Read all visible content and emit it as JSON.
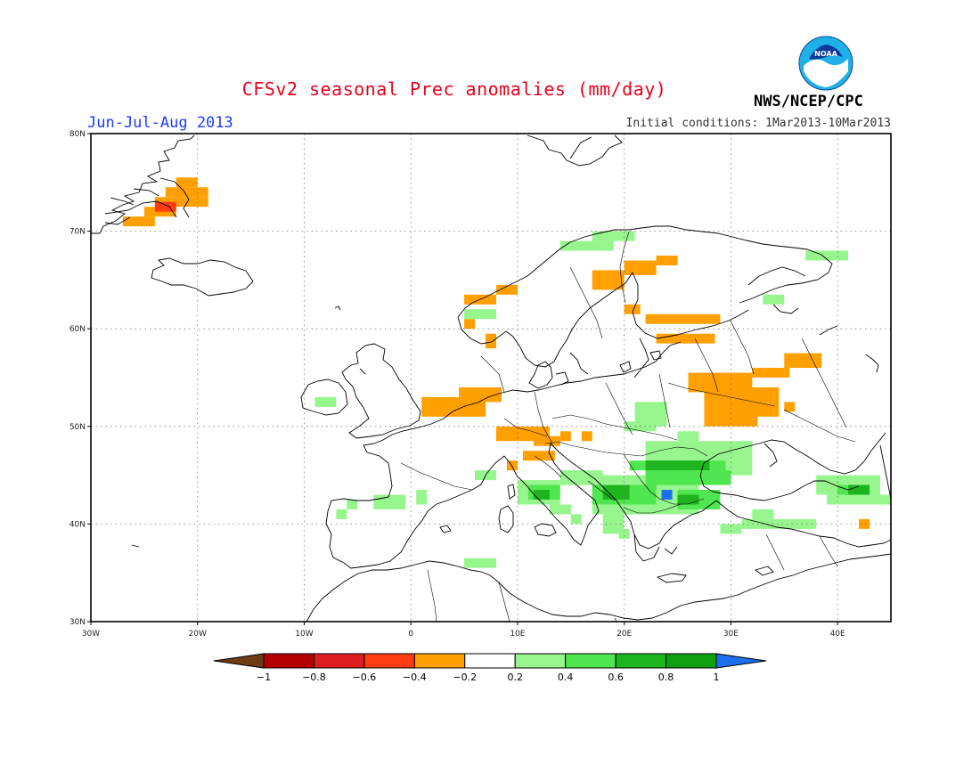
{
  "header": {
    "title": "CFSv2 seasonal Prec anomalies (mm/day)",
    "season": "Jun-Jul-Aug 2013",
    "initial_conditions": "Initial conditions: 1Mar2013-10Mar2013",
    "agency": "NWS/NCEP/CPC",
    "logo_text": "NOAA"
  },
  "map": {
    "lon_range": [
      -30,
      45
    ],
    "lat_range": [
      30,
      80
    ],
    "lon_ticks": [
      {
        "v": -30,
        "label": "30W"
      },
      {
        "v": -20,
        "label": "20W"
      },
      {
        "v": -10,
        "label": "10W"
      },
      {
        "v": 0,
        "label": "0"
      },
      {
        "v": 10,
        "label": "10E"
      },
      {
        "v": 20,
        "label": "20E"
      },
      {
        "v": 30,
        "label": "30E"
      },
      {
        "v": 40,
        "label": "40E"
      }
    ],
    "lat_ticks": [
      {
        "v": 30,
        "label": "30N"
      },
      {
        "v": 40,
        "label": "40N"
      },
      {
        "v": 50,
        "label": "50N"
      },
      {
        "v": 60,
        "label": "60N"
      },
      {
        "v": 70,
        "label": "70N"
      },
      {
        "v": 80,
        "label": "80N"
      }
    ],
    "grid": true,
    "cells": [
      {
        "lon": -27,
        "lat": 70.5,
        "w": 3,
        "h": 1,
        "c": "#ffa000"
      },
      {
        "lon": -25,
        "lat": 71.5,
        "w": 3,
        "h": 1,
        "c": "#ffa000"
      },
      {
        "lon": -24,
        "lat": 72.5,
        "w": 5,
        "h": 1,
        "c": "#ffa000"
      },
      {
        "lon": -23,
        "lat": 73.5,
        "w": 4,
        "h": 1,
        "c": "#ffa000"
      },
      {
        "lon": -22,
        "lat": 74.5,
        "w": 2,
        "h": 1,
        "c": "#ffa000"
      },
      {
        "lon": -24,
        "lat": 72,
        "w": 2,
        "h": 1,
        "c": "#ff3c14"
      },
      {
        "lon": 1,
        "lat": 51,
        "w": 6,
        "h": 2,
        "c": "#ffa000"
      },
      {
        "lon": 4.5,
        "lat": 52.5,
        "w": 4,
        "h": 1.5,
        "c": "#ffa000"
      },
      {
        "lon": 5,
        "lat": 62.5,
        "w": 3,
        "h": 1,
        "c": "#ffa000"
      },
      {
        "lon": 8,
        "lat": 63.5,
        "w": 2,
        "h": 1,
        "c": "#ffa000"
      },
      {
        "lon": 5,
        "lat": 60,
        "w": 1,
        "h": 1,
        "c": "#ffa000"
      },
      {
        "lon": 7,
        "lat": 58,
        "w": 1,
        "h": 1.5,
        "c": "#ffa000"
      },
      {
        "lon": 5,
        "lat": 61,
        "w": 3,
        "h": 1,
        "c": "#96f58c"
      },
      {
        "lon": 17,
        "lat": 64,
        "w": 3,
        "h": 2,
        "c": "#ffa000"
      },
      {
        "lon": 20,
        "lat": 65.5,
        "w": 3,
        "h": 1.5,
        "c": "#ffa000"
      },
      {
        "lon": 23,
        "lat": 66.5,
        "w": 2,
        "h": 1,
        "c": "#ffa000"
      },
      {
        "lon": 20,
        "lat": 61.5,
        "w": 1.5,
        "h": 1,
        "c": "#ffa000"
      },
      {
        "lon": 22,
        "lat": 60.5,
        "w": 7,
        "h": 1,
        "c": "#ffa000"
      },
      {
        "lon": 23,
        "lat": 58.5,
        "w": 5.5,
        "h": 1,
        "c": "#ffa000"
      },
      {
        "lon": 26,
        "lat": 53.5,
        "w": 6,
        "h": 2,
        "c": "#ffa000"
      },
      {
        "lon": 27.5,
        "lat": 50,
        "w": 5,
        "h": 4,
        "c": "#ffa000"
      },
      {
        "lon": 30.5,
        "lat": 51,
        "w": 4,
        "h": 3,
        "c": "#ffa000"
      },
      {
        "lon": 32,
        "lat": 55,
        "w": 3.5,
        "h": 1,
        "c": "#ffa000"
      },
      {
        "lon": 35,
        "lat": 56,
        "w": 3.5,
        "h": 1.5,
        "c": "#ffa000"
      },
      {
        "lon": 35,
        "lat": 51.5,
        "w": 1,
        "h": 1,
        "c": "#ffa000"
      },
      {
        "lon": 8,
        "lat": 48.5,
        "w": 5,
        "h": 1.5,
        "c": "#ffa000"
      },
      {
        "lon": 11.5,
        "lat": 48,
        "w": 2.5,
        "h": 1,
        "c": "#ffa000"
      },
      {
        "lon": 14,
        "lat": 48.5,
        "w": 1,
        "h": 1,
        "c": "#ffa000"
      },
      {
        "lon": 16,
        "lat": 48.5,
        "w": 1,
        "h": 1,
        "c": "#ffa000"
      },
      {
        "lon": 10.5,
        "lat": 46.5,
        "w": 3,
        "h": 1,
        "c": "#ffa000"
      },
      {
        "lon": 9,
        "lat": 45.5,
        "w": 1,
        "h": 1,
        "c": "#ffa000"
      },
      {
        "lon": 42,
        "lat": 39.5,
        "w": 1,
        "h": 1,
        "c": "#ffa000"
      },
      {
        "lon": 14,
        "lat": 68,
        "w": 5,
        "h": 1,
        "c": "#96f58c"
      },
      {
        "lon": 17,
        "lat": 69,
        "w": 4,
        "h": 1,
        "c": "#96f58c"
      },
      {
        "lon": 37,
        "lat": 67,
        "w": 4,
        "h": 1,
        "c": "#96f58c"
      },
      {
        "lon": 33,
        "lat": 62.5,
        "w": 2,
        "h": 1,
        "c": "#96f58c"
      },
      {
        "lon": -9,
        "lat": 52,
        "w": 2,
        "h": 1,
        "c": "#96f58c"
      },
      {
        "lon": 21,
        "lat": 50,
        "w": 3,
        "h": 2.5,
        "c": "#96f58c"
      },
      {
        "lon": 20,
        "lat": 49.5,
        "w": 3,
        "h": 1,
        "c": "#96f58c"
      },
      {
        "lon": 22,
        "lat": 45,
        "w": 10,
        "h": 3.5,
        "c": "#96f58c"
      },
      {
        "lon": 25,
        "lat": 48.5,
        "w": 2,
        "h": 1,
        "c": "#96f58c"
      },
      {
        "lon": 17,
        "lat": 41,
        "w": 10,
        "h": 4,
        "c": "#96f58c"
      },
      {
        "lon": 14,
        "lat": 44,
        "w": 4,
        "h": 1.5,
        "c": "#96f58c"
      },
      {
        "lon": 10,
        "lat": 42,
        "w": 4,
        "h": 2.5,
        "c": "#96f58c"
      },
      {
        "lon": 13,
        "lat": 41,
        "w": 2,
        "h": 1,
        "c": "#96f58c"
      },
      {
        "lon": 15,
        "lat": 40,
        "w": 1,
        "h": 1,
        "c": "#96f58c"
      },
      {
        "lon": 6,
        "lat": 44.5,
        "w": 2,
        "h": 1,
        "c": "#96f58c"
      },
      {
        "lon": 0.5,
        "lat": 42,
        "w": 1,
        "h": 1.5,
        "c": "#96f58c"
      },
      {
        "lon": -3.5,
        "lat": 41.5,
        "w": 3,
        "h": 1.5,
        "c": "#96f58c"
      },
      {
        "lon": -6,
        "lat": 41.5,
        "w": 1,
        "h": 1,
        "c": "#96f58c"
      },
      {
        "lon": -7,
        "lat": 40.5,
        "w": 1,
        "h": 1,
        "c": "#96f58c"
      },
      {
        "lon": 18,
        "lat": 39,
        "w": 2,
        "h": 2,
        "c": "#96f58c"
      },
      {
        "lon": 19.5,
        "lat": 38.5,
        "w": 1,
        "h": 1,
        "c": "#96f58c"
      },
      {
        "lon": 5,
        "lat": 35.5,
        "w": 3,
        "h": 1,
        "c": "#96f58c"
      },
      {
        "lon": 29,
        "lat": 39,
        "w": 2,
        "h": 1,
        "c": "#96f58c"
      },
      {
        "lon": 31,
        "lat": 39.5,
        "w": 6,
        "h": 1,
        "c": "#96f58c"
      },
      {
        "lon": 32,
        "lat": 40.5,
        "w": 2,
        "h": 1,
        "c": "#96f58c"
      },
      {
        "lon": 36,
        "lat": 39.5,
        "w": 2,
        "h": 1,
        "c": "#96f58c"
      },
      {
        "lon": 38,
        "lat": 43,
        "w": 6,
        "h": 2,
        "c": "#96f58c"
      },
      {
        "lon": 39,
        "lat": 42,
        "w": 6,
        "h": 1,
        "c": "#96f58c"
      },
      {
        "lon": 20.5,
        "lat": 45.5,
        "w": 9,
        "h": 1,
        "c": "#50e650"
      },
      {
        "lon": 22,
        "lat": 44,
        "w": 8,
        "h": 1.5,
        "c": "#50e650"
      },
      {
        "lon": 17,
        "lat": 42,
        "w": 6,
        "h": 2,
        "c": "#50e650"
      },
      {
        "lon": 25,
        "lat": 41.5,
        "w": 4,
        "h": 2,
        "c": "#50e650"
      },
      {
        "lon": 11,
        "lat": 42.5,
        "w": 3,
        "h": 1.5,
        "c": "#50e650"
      },
      {
        "lon": 40,
        "lat": 43,
        "w": 3,
        "h": 1,
        "c": "#50e650"
      },
      {
        "lon": 22,
        "lat": 45.5,
        "w": 6,
        "h": 1,
        "c": "#1eb41e"
      },
      {
        "lon": 18,
        "lat": 42.5,
        "w": 2.5,
        "h": 1.5,
        "c": "#1eb41e"
      },
      {
        "lon": 11.5,
        "lat": 42.5,
        "w": 1.5,
        "h": 1,
        "c": "#1eb41e"
      },
      {
        "lon": 25,
        "lat": 42,
        "w": 2,
        "h": 1,
        "c": "#1eb41e"
      },
      {
        "lon": 41,
        "lat": 43,
        "w": 2,
        "h": 1,
        "c": "#1eb41e"
      },
      {
        "lon": 23.5,
        "lat": 42.5,
        "w": 1,
        "h": 1,
        "c": "#1e6ef0"
      }
    ]
  },
  "colorbar": {
    "colors": [
      "#6e3c14",
      "#b40000",
      "#dc1e1e",
      "#ff3c14",
      "#ffa000",
      "#ffffff",
      "#96f58c",
      "#50e650",
      "#1eb41e",
      "#0fa00f",
      "#1e6ef0"
    ],
    "labels": [
      "−1",
      "−0.8",
      "−0.6",
      "−0.4",
      "−0.2",
      "0.2",
      "0.4",
      "0.6",
      "0.8",
      "1"
    ]
  }
}
